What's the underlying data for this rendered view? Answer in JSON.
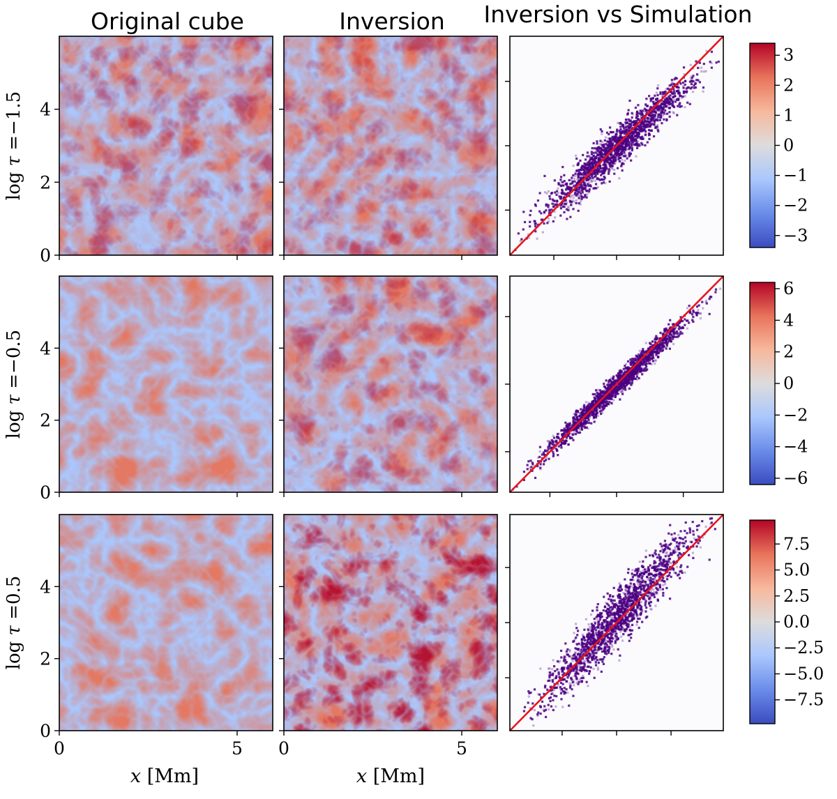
{
  "colors": {
    "cmap": [
      "#3b4cc0",
      "#6a8ce9",
      "#aac7fd",
      "#dddcdc",
      "#f7b89c",
      "#e7745b",
      "#b40426"
    ],
    "density": "#4b0082",
    "identity_line": "#e8141c"
  },
  "chart_data": {
    "type": "heatmap",
    "column_titles": [
      "Original cube",
      "Inversion",
      "Inversion vs Simulation"
    ],
    "x_axis": {
      "label": "x [Mm]",
      "ticks": [
        0,
        5
      ],
      "range": [
        0,
        6
      ]
    },
    "y_axis": {
      "ticks": [
        0,
        2,
        4
      ],
      "range": [
        0,
        6
      ]
    },
    "rows": [
      {
        "label": "log τ = −1.5",
        "label_main": "log τ",
        "label_eq": "=",
        "label_val": "−1.5",
        "colorbar": {
          "range": [
            -3.4,
            3.4
          ],
          "ticks": [
            "3",
            "2",
            "1",
            "0",
            "−1",
            "−2",
            "−3"
          ],
          "tick_values": [
            3,
            2,
            1,
            0,
            -1,
            -2,
            -3
          ]
        },
        "scatter": {
          "slope": 0.86,
          "intercept": -0.05,
          "spread": 0.16,
          "range": [
            -3.4,
            3.4
          ]
        }
      },
      {
        "label": "log τ = −0.5",
        "label_main": "log τ",
        "label_eq": "=",
        "label_val": "−0.5",
        "colorbar": {
          "range": [
            -6.4,
            6.4
          ],
          "ticks": [
            "6",
            "4",
            "2",
            "0",
            "−2",
            "−4",
            "−6"
          ],
          "tick_values": [
            6,
            4,
            2,
            0,
            -2,
            -4,
            -6
          ]
        },
        "scatter": {
          "slope": 0.94,
          "intercept": -0.05,
          "spread": 0.09,
          "range": [
            -6.4,
            6.4
          ]
        }
      },
      {
        "label": "log τ = 0.5",
        "label_main": "log τ",
        "label_eq": "=",
        "label_val": "0.5",
        "colorbar": {
          "range": [
            -9.8,
            9.8
          ],
          "ticks": [
            "7.5",
            "5.0",
            "2.5",
            "0.0",
            "−2.5",
            "−5.0",
            "−7.5"
          ],
          "tick_values": [
            7.5,
            5.0,
            2.5,
            0.0,
            -2.5,
            -5.0,
            -7.5
          ]
        },
        "scatter": {
          "slope": 1.05,
          "intercept": 0.12,
          "spread": 0.22,
          "range": [
            -9.8,
            9.8
          ]
        }
      }
    ]
  }
}
